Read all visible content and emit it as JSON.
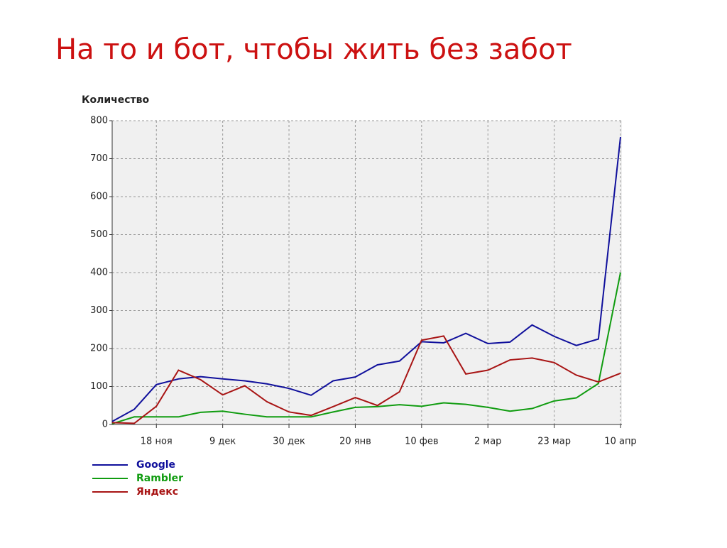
{
  "slide_title": "На то и бот, чтобы жить без забот",
  "chart_data": {
    "type": "line",
    "y_label": "Количество",
    "categories": [
      null,
      null,
      "18 ноя",
      null,
      null,
      "9 дек",
      null,
      null,
      "30 дек",
      null,
      null,
      "20 янв",
      null,
      null,
      "10 фев",
      null,
      null,
      "2 мар",
      null,
      null,
      "23 мар",
      null,
      null,
      "10 апр"
    ],
    "series": [
      {
        "name": "Google",
        "color": "#10109c",
        "values": [
          8,
          40,
          105,
          120,
          126,
          120,
          115,
          107,
          95,
          77,
          115,
          125,
          157,
          167,
          218,
          215,
          240,
          213,
          217,
          262,
          232,
          208,
          225,
          757
        ]
      },
      {
        "name": "Rambler",
        "color": "#109c10",
        "values": [
          2,
          20,
          20,
          20,
          32,
          35,
          27,
          20,
          20,
          20,
          33,
          45,
          47,
          52,
          48,
          57,
          53,
          45,
          35,
          42,
          62,
          70,
          108,
          400
        ]
      },
      {
        "name": "Яндекс",
        "color": "#a81414",
        "values": [
          5,
          3,
          48,
          143,
          118,
          78,
          102,
          60,
          33,
          24,
          47,
          71,
          50,
          86,
          222,
          233,
          133,
          143,
          170,
          175,
          163,
          130,
          112,
          135
        ]
      }
    ],
    "ylim": [
      0,
      800
    ],
    "yticks": [
      0,
      100,
      200,
      300,
      400,
      500,
      600,
      700,
      800
    ],
    "grid": true
  }
}
